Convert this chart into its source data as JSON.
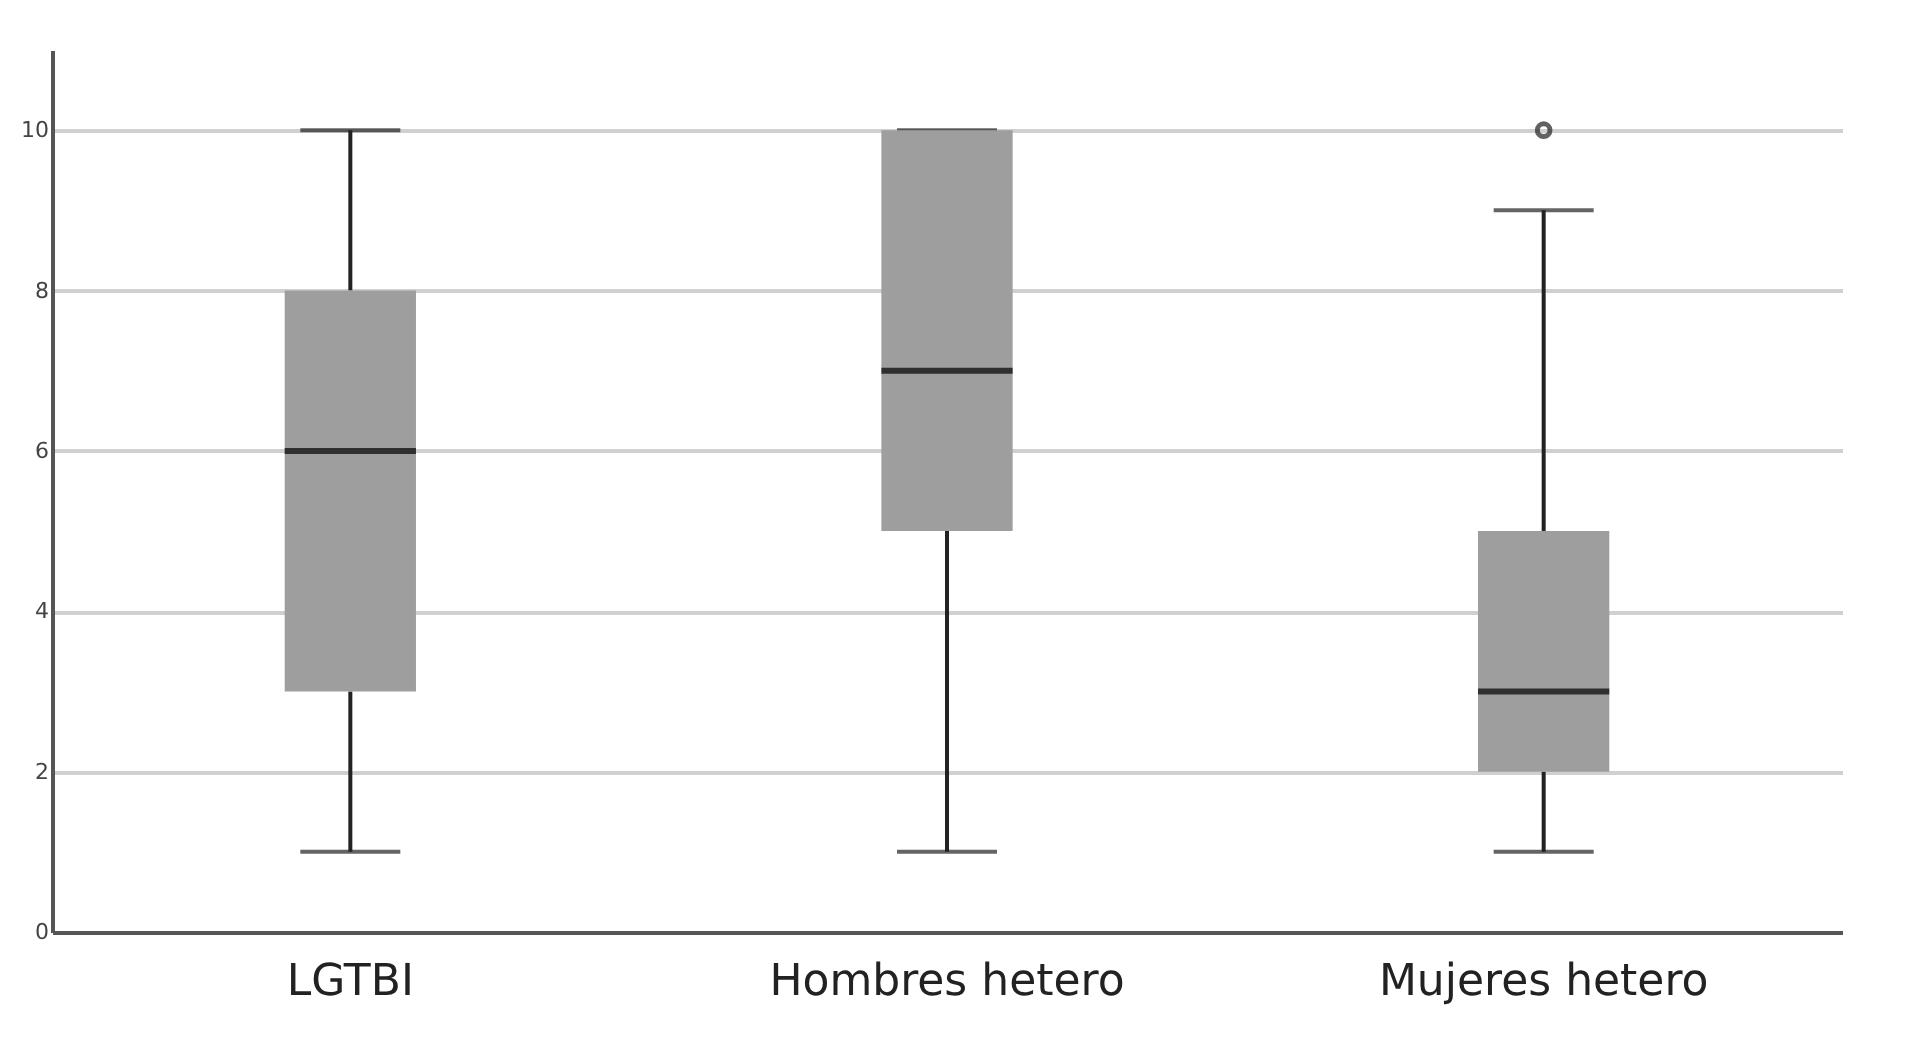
{
  "chart_data": {
    "type": "box",
    "categories": [
      "LGTBI",
      "Hombres hetero",
      "Mujeres hetero"
    ],
    "color": "#9e9e9e",
    "boxes": [
      {
        "low": 1,
        "q1": 3,
        "median": 6,
        "q3": 8,
        "high": 10
      },
      {
        "low": 1,
        "q1": 5,
        "median": 7,
        "q3": 10,
        "high": 10
      },
      {
        "low": 1,
        "q1": 2,
        "median": 3,
        "q3": 5,
        "high": 9,
        "outliers": [
          10
        ]
      }
    ],
    "ylim": [
      0,
      11
    ],
    "yticks": [
      0,
      2,
      4,
      6,
      8,
      10
    ],
    "grid": "y"
  }
}
